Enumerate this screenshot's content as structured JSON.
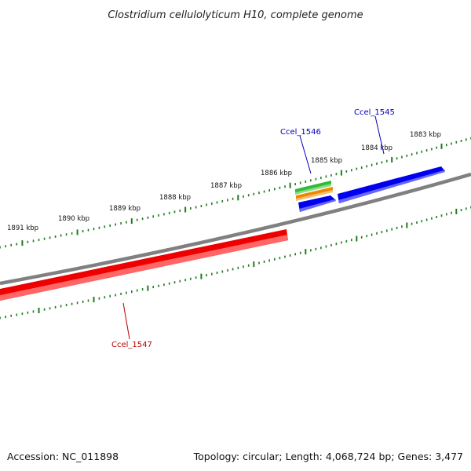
{
  "title": "Clostridium cellulolyticum H10, complete genome",
  "footer": {
    "accession": "Accession: NC_011898",
    "summary": "Topology: circular; Length: 4,068,724 bp; Genes: 3,477"
  },
  "colors": {
    "backbone": "#808080",
    "tick": "#1f7a1f",
    "forward_gene": "#0000ee",
    "reverse_gene": "#ee0000",
    "green_feature": "#33bb33",
    "orange_feature": "#ee8800",
    "label_forward": "#0000bb",
    "label_reverse": "#bb0000"
  },
  "scale_labels": [
    "1883 kbp",
    "1884 kbp",
    "1885 kbp",
    "1886 kbp",
    "1887 kbp",
    "1888 kbp",
    "1889 kbp",
    "1890 kbp",
    "1891 kbp"
  ],
  "genes": [
    {
      "name": "Ccel_1545",
      "strand": "forward"
    },
    {
      "name": "Ccel_1546",
      "strand": "forward"
    },
    {
      "name": "Ccel_1547",
      "strand": "reverse"
    }
  ]
}
